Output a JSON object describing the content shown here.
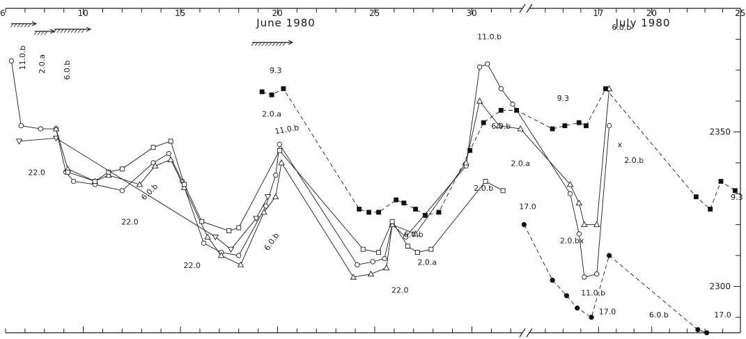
{
  "chart_data": {
    "type": "line",
    "title": "",
    "xlabel": "",
    "ylabel": "",
    "months": [
      "June 1980",
      "July 1980"
    ],
    "x_ticks": [
      "6",
      "10",
      "15",
      "20",
      "25",
      "30",
      "17",
      "20",
      "25"
    ],
    "y_ticks": [
      "2350",
      "2300"
    ],
    "ylim": [
      2285,
      2390
    ],
    "grid": false,
    "series": [
      {
        "marker": "circle",
        "line": "solid",
        "points": [
          {
            "x": 6.3,
            "y": 2373
          },
          {
            "x": 6.8,
            "y": 2352
          },
          {
            "x": 7.8,
            "y": 2351
          },
          {
            "x": 8.6,
            "y": 2351
          },
          {
            "x": 9.1,
            "y": 2337
          },
          {
            "x": 9.5,
            "y": 2334
          },
          {
            "x": 10.6,
            "y": 2333
          },
          {
            "x": 12.0,
            "y": 2331
          },
          {
            "x": 13.6,
            "y": 2340
          },
          {
            "x": 14.4,
            "y": 2343
          },
          {
            "x": 15.1,
            "y": 2334
          },
          {
            "x": 16.2,
            "y": 2314
          },
          {
            "x": 17.1,
            "y": 2311
          },
          {
            "x": 18.0,
            "y": 2310
          },
          {
            "x": 19.4,
            "y": 2326
          },
          {
            "x": 19.9,
            "y": 2336
          },
          {
            "x": 20.1,
            "y": 2346
          },
          {
            "x": 24.1,
            "y": 2307
          },
          {
            "x": 24.9,
            "y": 2308
          },
          {
            "x": 25.5,
            "y": 2309
          },
          {
            "x": 25.9,
            "y": 2320
          },
          {
            "x": 26.6,
            "y": 2316
          },
          {
            "x": 29.7,
            "y": 2339
          },
          {
            "x": 30.4,
            "y": 2371
          },
          {
            "x": 30.8,
            "y": 2372
          },
          {
            "x": 31.5,
            "y": 2364
          },
          {
            "x": 32.1,
            "y": 2359
          },
          {
            "x": 35.4,
            "y": 2330
          },
          {
            "x": 35.9,
            "y": 2317
          },
          {
            "x": 36.2,
            "y": 2303
          },
          {
            "x": 36.9,
            "y": 2304
          },
          {
            "x": 37.6,
            "y": 2352
          }
        ]
      },
      {
        "marker": "triangle-up",
        "line": "solid",
        "points": [
          {
            "x": 8.6,
            "y": 2351
          },
          {
            "x": 9.2,
            "y": 2338
          },
          {
            "x": 10.6,
            "y": 2334
          },
          {
            "x": 11.3,
            "y": 2336
          },
          {
            "x": 12.9,
            "y": 2333
          },
          {
            "x": 13.7,
            "y": 2339
          },
          {
            "x": 14.5,
            "y": 2341
          },
          {
            "x": 15.2,
            "y": 2332
          },
          {
            "x": 16.4,
            "y": 2316
          },
          {
            "x": 17.1,
            "y": 2310
          },
          {
            "x": 18.1,
            "y": 2307
          },
          {
            "x": 19.3,
            "y": 2324
          },
          {
            "x": 19.9,
            "y": 2329
          },
          {
            "x": 20.2,
            "y": 2340
          },
          {
            "x": 23.9,
            "y": 2303
          },
          {
            "x": 24.8,
            "y": 2304
          },
          {
            "x": 25.6,
            "y": 2306
          },
          {
            "x": 25.9,
            "y": 2320
          },
          {
            "x": 27.1,
            "y": 2317
          },
          {
            "x": 29.7,
            "y": 2340
          },
          {
            "x": 30.4,
            "y": 2360
          },
          {
            "x": 31.4,
            "y": 2352
          },
          {
            "x": 32.5,
            "y": 2351
          },
          {
            "x": 35.4,
            "y": 2333
          },
          {
            "x": 35.9,
            "y": 2327
          },
          {
            "x": 36.2,
            "y": 2320
          },
          {
            "x": 36.9,
            "y": 2320
          },
          {
            "x": 37.6,
            "y": 2364
          }
        ]
      },
      {
        "marker": "square",
        "line": "solid",
        "points": [
          {
            "x": 9.2,
            "y": 2337
          },
          {
            "x": 10.6,
            "y": 2334
          },
          {
            "x": 11.3,
            "y": 2337
          },
          {
            "x": 12.0,
            "y": 2338
          },
          {
            "x": 13.6,
            "y": 2345
          },
          {
            "x": 14.5,
            "y": 2347
          },
          {
            "x": 15.2,
            "y": 2333
          },
          {
            "x": 16.1,
            "y": 2321
          },
          {
            "x": 17.5,
            "y": 2318
          },
          {
            "x": 18.0,
            "y": 2319
          },
          {
            "x": 20.1,
            "y": 2344
          },
          {
            "x": 24.4,
            "y": 2312
          },
          {
            "x": 25.2,
            "y": 2311
          },
          {
            "x": 25.9,
            "y": 2321
          },
          {
            "x": 26.7,
            "y": 2313
          },
          {
            "x": 27.2,
            "y": 2311
          },
          {
            "x": 27.9,
            "y": 2312
          },
          {
            "x": 30.7,
            "y": 2334
          },
          {
            "x": 31.6,
            "y": 2331
          }
        ]
      },
      {
        "marker": "triangle-down",
        "line": "solid",
        "points": [
          {
            "x": 6.7,
            "y": 2347
          },
          {
            "x": 8.6,
            "y": 2348
          },
          {
            "x": 16.8,
            "y": 2316
          },
          {
            "x": 17.6,
            "y": 2312
          },
          {
            "x": 18.9,
            "y": 2322
          },
          {
            "x": 19.5,
            "y": 2329
          }
        ]
      },
      {
        "marker": "filled-square",
        "line": "dashed",
        "points": [
          {
            "x": 19.2,
            "y": 2363
          },
          {
            "x": 19.7,
            "y": 2362
          },
          {
            "x": 20.3,
            "y": 2364
          },
          {
            "x": 24.2,
            "y": 2325
          },
          {
            "x": 24.7,
            "y": 2324
          },
          {
            "x": 25.2,
            "y": 2324
          },
          {
            "x": 26.1,
            "y": 2328
          },
          {
            "x": 26.5,
            "y": 2327
          },
          {
            "x": 27.1,
            "y": 2325
          },
          {
            "x": 27.6,
            "y": 2323
          },
          {
            "x": 28.3,
            "y": 2324
          },
          {
            "x": 29.9,
            "y": 2344
          },
          {
            "x": 30.6,
            "y": 2353
          },
          {
            "x": 31.5,
            "y": 2357
          },
          {
            "x": 32.3,
            "y": 2357
          },
          {
            "x": 34.4,
            "y": 2351
          },
          {
            "x": 35.1,
            "y": 2352
          },
          {
            "x": 35.9,
            "y": 2353
          },
          {
            "x": 36.3,
            "y": 2352
          },
          {
            "x": 37.4,
            "y": 2364
          },
          {
            "x": 42.5,
            "y": 2329
          },
          {
            "x": 43.3,
            "y": 2325
          },
          {
            "x": 43.9,
            "y": 2334
          },
          {
            "x": 44.7,
            "y": 2331
          }
        ]
      },
      {
        "marker": "filled-circle",
        "line": "dashed",
        "points": [
          {
            "x": 32.8,
            "y": 2320
          },
          {
            "x": 34.4,
            "y": 2302
          },
          {
            "x": 35.2,
            "y": 2297
          },
          {
            "x": 35.8,
            "y": 2293
          },
          {
            "x": 36.6,
            "y": 2290
          },
          {
            "x": 37.6,
            "y": 2310
          },
          {
            "x": 42.6,
            "y": 2286
          },
          {
            "x": 43.1,
            "y": 2285
          }
        ]
      }
    ],
    "annotations": [
      {
        "text": "11.0.b",
        "x": 7.0,
        "y": 2374,
        "rotate": -90
      },
      {
        "text": "2.0.a",
        "x": 8.0,
        "y": 2372,
        "rotate": -90
      },
      {
        "text": "6.0.b",
        "x": 9.3,
        "y": 2370,
        "rotate": -90
      },
      {
        "text": "22.0",
        "x": 7.6,
        "y": 2336
      },
      {
        "text": "22.0",
        "x": 12.4,
        "y": 2320
      },
      {
        "text": "6.0.b",
        "x": 13.5,
        "y": 2330,
        "rotate": -45
      },
      {
        "text": "22.0",
        "x": 15.6,
        "y": 2306
      },
      {
        "text": "9̄.3",
        "x": 19.9,
        "y": 2369
      },
      {
        "text": "2.0.a",
        "x": 19.7,
        "y": 2355
      },
      {
        "text": "11.0.b",
        "x": 20.5,
        "y": 2350,
        "rotate": -10
      },
      {
        "text": "6.0.b",
        "x": 19.8,
        "y": 2314,
        "rotate": -55
      },
      {
        "text": "6.0.b",
        "x": 27.0,
        "y": 2316
      },
      {
        "text": "2.0.a",
        "x": 27.7,
        "y": 2307
      },
      {
        "text": "22.0",
        "x": 26.3,
        "y": 2298
      },
      {
        "text": "11.0.b",
        "x": 30.9,
        "y": 2380
      },
      {
        "text": "6.0.b",
        "x": 31.5,
        "y": 2351
      },
      {
        "text": "2.0.a",
        "x": 32.5,
        "y": 2339
      },
      {
        "text": "2.0.b",
        "x": 30.6,
        "y": 2331
      },
      {
        "text": "9̄.3",
        "x": 35.0,
        "y": 2360
      },
      {
        "text": "6.0.b",
        "x": 38.3,
        "y": 2383
      },
      {
        "text": "17.0",
        "x": 33.0,
        "y": 2325
      },
      {
        "text": "2.0.bx",
        "x": 35.5,
        "y": 2314
      },
      {
        "text": "11.0.b",
        "x": 36.7,
        "y": 2297
      },
      {
        "text": "17.0",
        "x": 37.5,
        "y": 2291
      },
      {
        "text": "x",
        "x": 38.2,
        "y": 2345
      },
      {
        "text": "2.0.b",
        "x": 39.0,
        "y": 2340
      },
      {
        "text": "6.0.b",
        "x": 40.4,
        "y": 2290
      },
      {
        "text": "17.0",
        "x": 44.0,
        "y": 2290
      },
      {
        "text": "9̄.3",
        "x": 44.8,
        "y": 2328
      }
    ]
  }
}
